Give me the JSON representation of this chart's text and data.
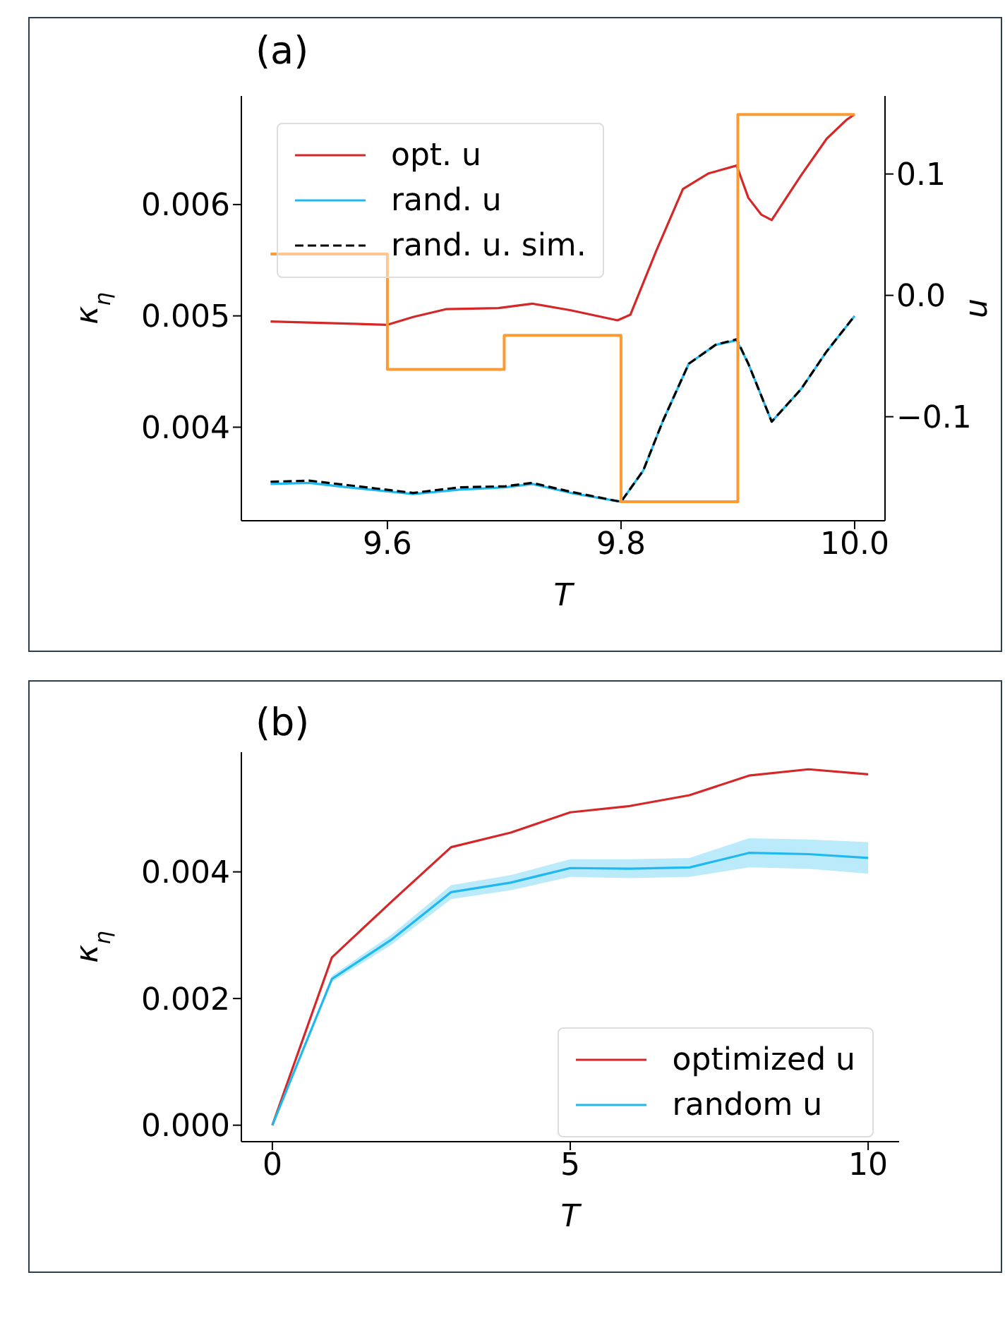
{
  "chart_data": [
    {
      "type": "line",
      "annotations": [
        "(a)"
      ],
      "xlabel": "T",
      "ylabel": "κ$_{η}$",
      "y2label": "u",
      "xlim": [
        9.475,
        10.026
      ],
      "xticks": [
        9.6,
        9.8,
        {
          "value": 10.0,
          "label": "10.0"
        }
      ],
      "ylim": [
        0.00316,
        0.006975
      ],
      "yticks": [
        0.004,
        0.005,
        0.006
      ],
      "y2lim": [
        -0.1857,
        0.1643
      ],
      "y2ticks": [
        {
          "value": -0.1,
          "label": "−0.1"
        },
        {
          "value": 0.0,
          "label": "0.0"
        },
        0.1
      ],
      "legend": "top left",
      "series": [
        {
          "name": "opt. u",
          "color": "#d62728",
          "x": [
            9.5,
            9.6,
            9.622,
            9.65,
            9.695,
            9.724,
            9.757,
            9.797,
            9.808,
            9.83,
            9.853,
            9.875,
            9.899,
            9.909,
            9.92,
            9.929,
            9.954,
            9.976,
            9.993,
            10.0
          ],
          "values": [
            0.00495,
            0.00492,
            0.00499,
            0.00506,
            0.00507,
            0.00511,
            0.00505,
            0.00496,
            0.00501,
            0.00558,
            0.00614,
            0.00628,
            0.00635,
            0.00606,
            0.00591,
            0.00586,
            0.00626,
            0.00659,
            0.00676,
            0.00681
          ]
        },
        {
          "name": "rand. u",
          "color": "#1fb8f0",
          "x": [
            9.5,
            9.533,
            9.566,
            9.622,
            9.662,
            9.701,
            9.724,
            9.757,
            9.8,
            9.819,
            9.836,
            9.858,
            9.881,
            9.899,
            9.909,
            9.929,
            9.954,
            9.976,
            10.0
          ],
          "values": [
            0.00349,
            0.0035,
            0.00346,
            0.0034,
            0.00344,
            0.00346,
            0.00349,
            0.00341,
            0.00333,
            0.00361,
            0.00406,
            0.00457,
            0.00474,
            0.00478,
            0.00457,
            0.00405,
            0.00434,
            0.00468,
            0.005
          ]
        },
        {
          "name": "rand. u. sim.",
          "color": "#000000",
          "line_style": "dashed",
          "x": [
            9.5,
            9.533,
            9.566,
            9.622,
            9.662,
            9.701,
            9.724,
            9.757,
            9.8,
            9.819,
            9.836,
            9.858,
            9.881,
            9.899,
            9.909,
            9.929,
            9.954,
            9.976,
            10.0
          ],
          "values": [
            0.00351,
            0.00352,
            0.00348,
            0.00341,
            0.00346,
            0.00347,
            0.0035,
            0.00342,
            0.00333,
            0.00361,
            0.00406,
            0.00457,
            0.00474,
            0.00479,
            0.00457,
            0.00405,
            0.00434,
            0.00468,
            0.005
          ]
        },
        {
          "type": "step",
          "axis": "y2",
          "color": "#ff9a33",
          "x": [
            9.5,
            9.6,
            9.7,
            9.8,
            9.9,
            10.0
          ],
          "values": [
            0.034,
            -0.061,
            -0.033,
            -0.17,
            0.149,
            0.149
          ]
        }
      ]
    },
    {
      "type": "line",
      "annotations": [
        "(b)"
      ],
      "xlabel": "T",
      "ylabel": "κ$_{η}$",
      "xlim": [
        -0.52,
        10.52
      ],
      "xticks": [
        0,
        5,
        10
      ],
      "ylim": [
        -0.00026,
        0.00589
      ],
      "yticks": [
        {
          "value": 0,
          "label": "0.000"
        },
        0.002,
        0.004
      ],
      "legend": "bottom right",
      "x": [
        0,
        1,
        2,
        3,
        4,
        5,
        6,
        7,
        8,
        9,
        10
      ],
      "series": [
        {
          "name": "optimized u",
          "color": "#d62728",
          "values": [
            0,
            0.00265,
            0.00353,
            0.00439,
            0.00462,
            0.00494,
            0.00504,
            0.00521,
            0.00552,
            0.00562,
            0.00554
          ]
        },
        {
          "name": "random u",
          "color": "#1fb8f0",
          "values": [
            0,
            0.00231,
            0.00293,
            0.00368,
            0.00383,
            0.00406,
            0.00405,
            0.00407,
            0.0043,
            0.00428,
            0.00422
          ],
          "lower": [
            0,
            0.00226,
            0.00285,
            0.00357,
            0.00371,
            0.00392,
            0.0039,
            0.00392,
            0.00407,
            0.00405,
            0.00397
          ],
          "upper": [
            0,
            0.00236,
            0.00301,
            0.00379,
            0.00395,
            0.0042,
            0.0042,
            0.00422,
            0.00453,
            0.00451,
            0.00447
          ]
        }
      ]
    }
  ]
}
